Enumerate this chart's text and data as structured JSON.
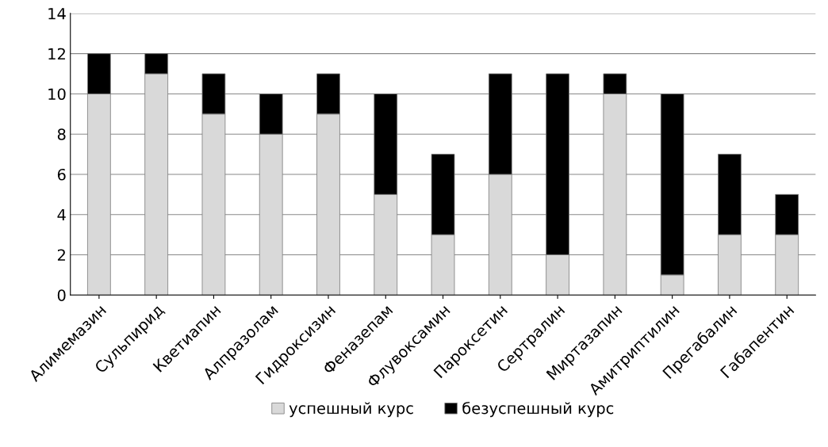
{
  "chart_data": {
    "type": "bar",
    "stacked": true,
    "categories": [
      "Алимемазин",
      "Сульпирид",
      "Кветиапин",
      "Алпразолам",
      "Гидроксизин",
      "Феназепам",
      "Флувоксамин",
      "Пароксетин",
      "Сертралин",
      "Миртазапин",
      "Амитриптилин",
      "Прегабалин",
      "Габапентин"
    ],
    "series": [
      {
        "name": "успешный курс",
        "color": "#d9d9d9",
        "values": [
          10,
          11,
          9,
          8,
          9,
          5,
          3,
          6,
          2,
          10,
          1,
          3,
          3
        ]
      },
      {
        "name": "безуспешный курс",
        "color": "#000000",
        "values": [
          2,
          1,
          2,
          2,
          2,
          5,
          4,
          5,
          9,
          1,
          9,
          4,
          2
        ]
      }
    ],
    "ylim": [
      0,
      14
    ],
    "yticks": [
      0,
      2,
      4,
      6,
      8,
      10,
      12,
      14
    ],
    "grid": "y",
    "legend": "bottom"
  }
}
